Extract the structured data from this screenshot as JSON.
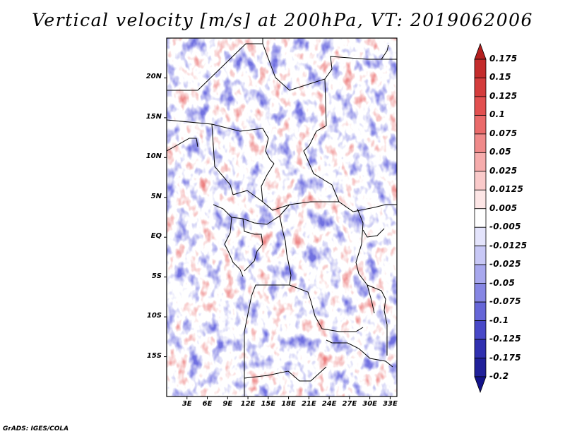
{
  "title": "Vertical velocity [m/s] at 200hPa, VT: 2019062006",
  "map": {
    "lat_ticks": [
      "20N",
      "15N",
      "10N",
      "5N",
      "EQ",
      "5S",
      "10S",
      "15S"
    ],
    "lat_values": [
      20,
      15,
      10,
      5,
      0,
      -5,
      -10,
      -15
    ],
    "lon_ticks": [
      "3E",
      "6E",
      "9E",
      "12E",
      "15E",
      "18E",
      "21E",
      "24E",
      "27E",
      "30E",
      "33E"
    ],
    "lon_values": [
      3,
      6,
      9,
      12,
      15,
      18,
      21,
      24,
      27,
      30,
      33
    ],
    "lon_range": [
      0,
      34
    ],
    "lat_range": [
      -20,
      25
    ]
  },
  "colorbar": {
    "labels": [
      "0.175",
      "0.15",
      "0.125",
      "0.1",
      "0.075",
      "0.05",
      "0.025",
      "0.0125",
      "0.005",
      "-0.005",
      "-0.0125",
      "-0.025",
      "-0.05",
      "-0.075",
      "-0.1",
      "-0.125",
      "-0.175",
      "-0.2"
    ],
    "colors": [
      "#b41f1f",
      "#c42c2c",
      "#d43c3c",
      "#e25050",
      "#ea6a6a",
      "#f08a8a",
      "#f6acac",
      "#facaca",
      "#fde6e6",
      "#ffffff",
      "#e4e4fc",
      "#c8c8f6",
      "#a8a8ee",
      "#8686e4",
      "#6666d8",
      "#4848c8",
      "#3030b0",
      "#20209a",
      "#12128a"
    ]
  },
  "credit": "GrADS: IGES/COLA"
}
